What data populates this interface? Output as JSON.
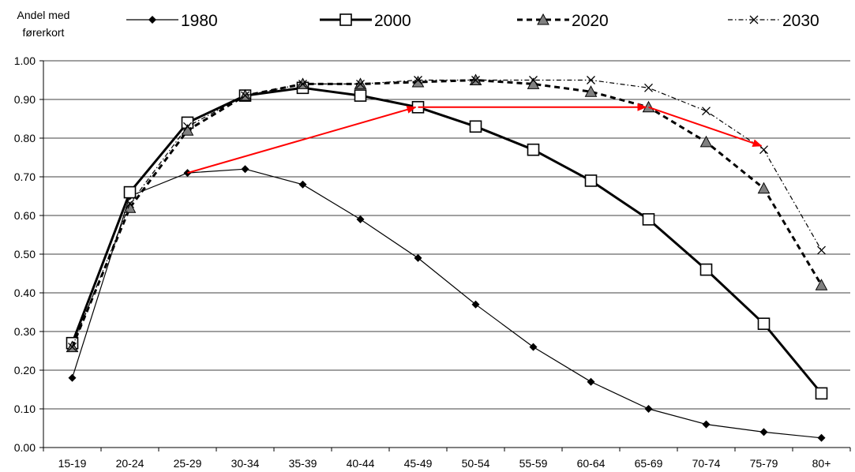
{
  "chart_data": {
    "type": "line",
    "ylabel": [
      "Andel med",
      "førerkort"
    ],
    "xlabel": "",
    "title": "",
    "ylim": [
      0,
      1
    ],
    "y_ticks": [
      "0.00",
      "0.10",
      "0.20",
      "0.30",
      "0.40",
      "0.50",
      "0.60",
      "0.70",
      "0.80",
      "0.90",
      "1.00"
    ],
    "grid": "horizontal",
    "legend_position": "top",
    "categories": [
      "15-19",
      "20-24",
      "25-29",
      "30-34",
      "35-39",
      "40-44",
      "45-49",
      "50-54",
      "55-59",
      "60-64",
      "65-69",
      "70-74",
      "75-79",
      "80+"
    ],
    "series": [
      {
        "name": "1980",
        "marker": "diamond",
        "line": "solid-thin",
        "color": "#000000",
        "values": [
          0.18,
          0.65,
          0.71,
          0.72,
          0.68,
          0.59,
          0.49,
          0.37,
          0.26,
          0.17,
          0.1,
          0.06,
          0.04,
          0.025
        ]
      },
      {
        "name": "2000",
        "marker": "square-open",
        "line": "solid-thick",
        "color": "#000000",
        "values": [
          0.27,
          0.66,
          0.84,
          0.91,
          0.93,
          0.91,
          0.88,
          0.83,
          0.77,
          0.69,
          0.59,
          0.46,
          0.32,
          0.14
        ]
      },
      {
        "name": "2020",
        "marker": "triangle-grey",
        "line": "dashed-thick",
        "color": "#000000",
        "values": [
          0.26,
          0.62,
          0.82,
          0.91,
          0.94,
          0.94,
          0.945,
          0.95,
          0.94,
          0.92,
          0.88,
          0.79,
          0.67,
          0.42
        ]
      },
      {
        "name": "2030",
        "marker": "x",
        "line": "dash-dot-thin",
        "color": "#000000",
        "values": [
          0.26,
          0.63,
          0.83,
          0.91,
          0.94,
          0.94,
          0.95,
          0.95,
          0.95,
          0.95,
          0.93,
          0.87,
          0.77,
          0.51
        ]
      }
    ],
    "annotations": {
      "arrow_color": "#ff0000",
      "arrows": [
        {
          "from": {
            "x": "25-29",
            "y": 0.71
          },
          "to": {
            "x": "45-49",
            "y": 0.88
          }
        },
        {
          "from": {
            "x": "45-49",
            "y": 0.88
          },
          "to": {
            "x": "65-69",
            "y": 0.88
          }
        },
        {
          "from": {
            "x": "65-69",
            "y": 0.88
          },
          "to": {
            "x": "75-79",
            "y": 0.78
          }
        }
      ]
    }
  }
}
